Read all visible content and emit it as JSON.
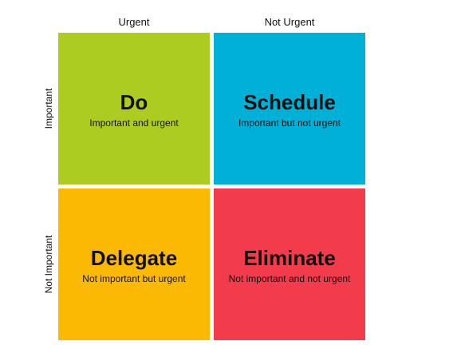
{
  "columns": [
    "Urgent",
    "Not Urgent"
  ],
  "rows": [
    "Important",
    "Not Important"
  ],
  "quadrants": [
    {
      "title": "Do",
      "subtitle": "Important and urgent",
      "color": "#adcc22"
    },
    {
      "title": "Schedule",
      "subtitle": "Important but not urgent",
      "color": "#00b0d6"
    },
    {
      "title": "Delegate",
      "subtitle": "Not important but urgent",
      "color": "#fbb904"
    },
    {
      "title": "Eliminate",
      "subtitle": "Not important and not urgent",
      "color": "#f23b4b"
    }
  ]
}
